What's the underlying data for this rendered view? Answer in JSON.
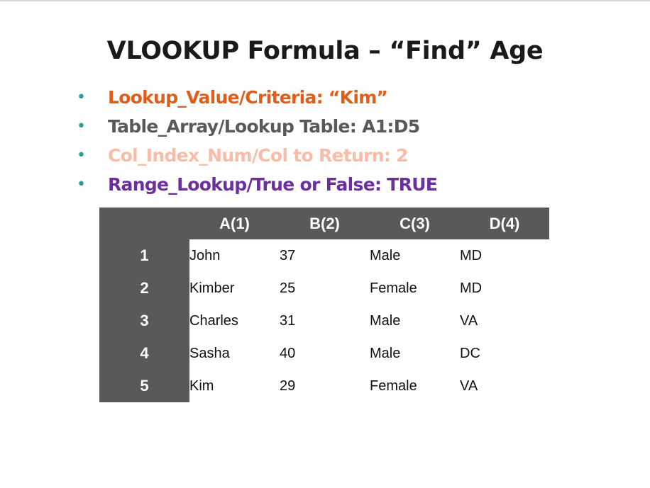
{
  "slide": {
    "title": "VLOOKUP Formula – “Find” Age",
    "bullet_glyph": "•",
    "bullet_color": "#2a9d8f",
    "bullets": [
      {
        "text": "Lookup_Value/Criteria: “Kim”",
        "color": "#e35d1a"
      },
      {
        "text": "Table_Array/Lookup Table: A1:D5",
        "color": "#595959"
      },
      {
        "text": "Col_Index_Num/Col to Return: 2",
        "color": "#f8bca8"
      },
      {
        "text": "Range_Lookup/True or False: TRUE",
        "color": "#6b2f9e"
      }
    ]
  },
  "table": {
    "header_color": "#595959",
    "columns": [
      "A(1)",
      "B(2)",
      "C(3)",
      "D(4)"
    ],
    "rows": [
      {
        "label": "1",
        "cells": [
          "John",
          "37",
          "Male",
          "MD"
        ]
      },
      {
        "label": "2",
        "cells": [
          "Kimber",
          "25",
          "Female",
          "MD"
        ]
      },
      {
        "label": "3",
        "cells": [
          "Charles",
          "31",
          "Male",
          "VA"
        ]
      },
      {
        "label": "4",
        "cells": [
          "Sasha",
          "40",
          "Male",
          "DC"
        ]
      },
      {
        "label": "5",
        "cells": [
          "Kim",
          "29",
          "Female",
          "VA"
        ]
      }
    ]
  }
}
